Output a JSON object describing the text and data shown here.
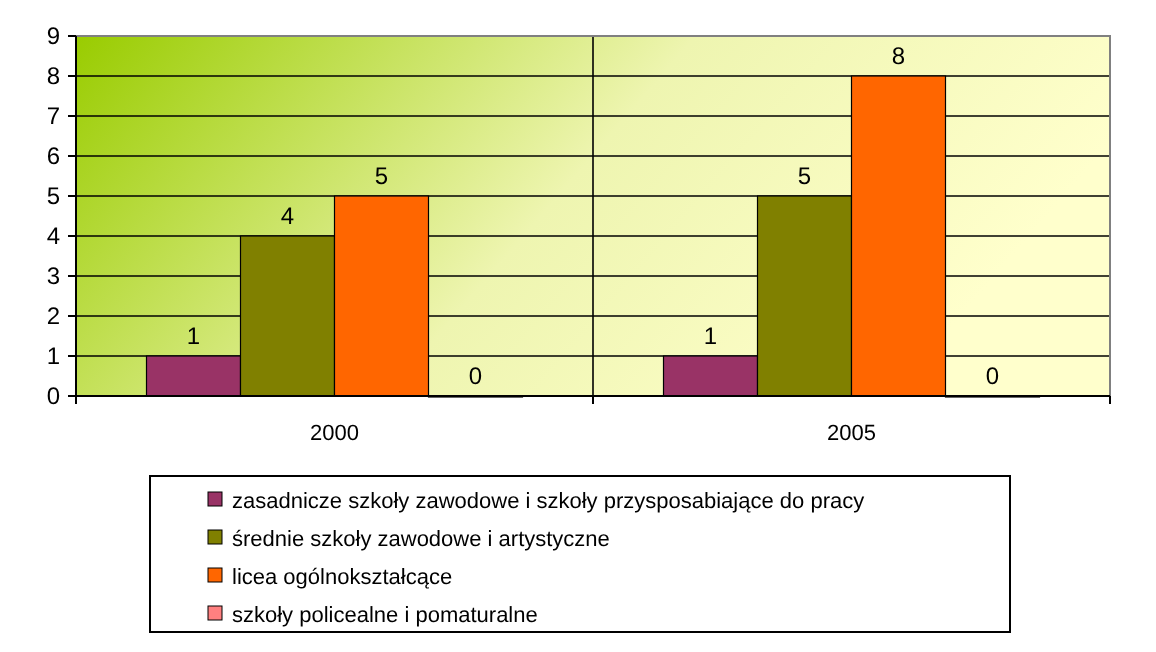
{
  "chart_data": {
    "type": "bar",
    "categories": [
      "2000",
      "2005"
    ],
    "series": [
      {
        "name": "zasadnicze szkoły zawodowe i szkoły przysposabiające do pracy",
        "color": "#993366",
        "values": [
          1,
          1
        ]
      },
      {
        "name": "średnie szkoły zawodowe i artystyczne",
        "color": "#808000",
        "values": [
          4,
          5
        ]
      },
      {
        "name": "licea ogólnokształcące",
        "color": "#ff6600",
        "values": [
          5,
          8
        ]
      },
      {
        "name": "szkoły policealne i pomaturalne",
        "color": "#ff8080",
        "values": [
          0,
          0
        ]
      }
    ],
    "ylim": [
      0,
      9
    ],
    "yticks": [
      0,
      1,
      2,
      3,
      4,
      5,
      6,
      7,
      8,
      9
    ],
    "grid": true,
    "data_labels": true,
    "legend": "bottom"
  }
}
